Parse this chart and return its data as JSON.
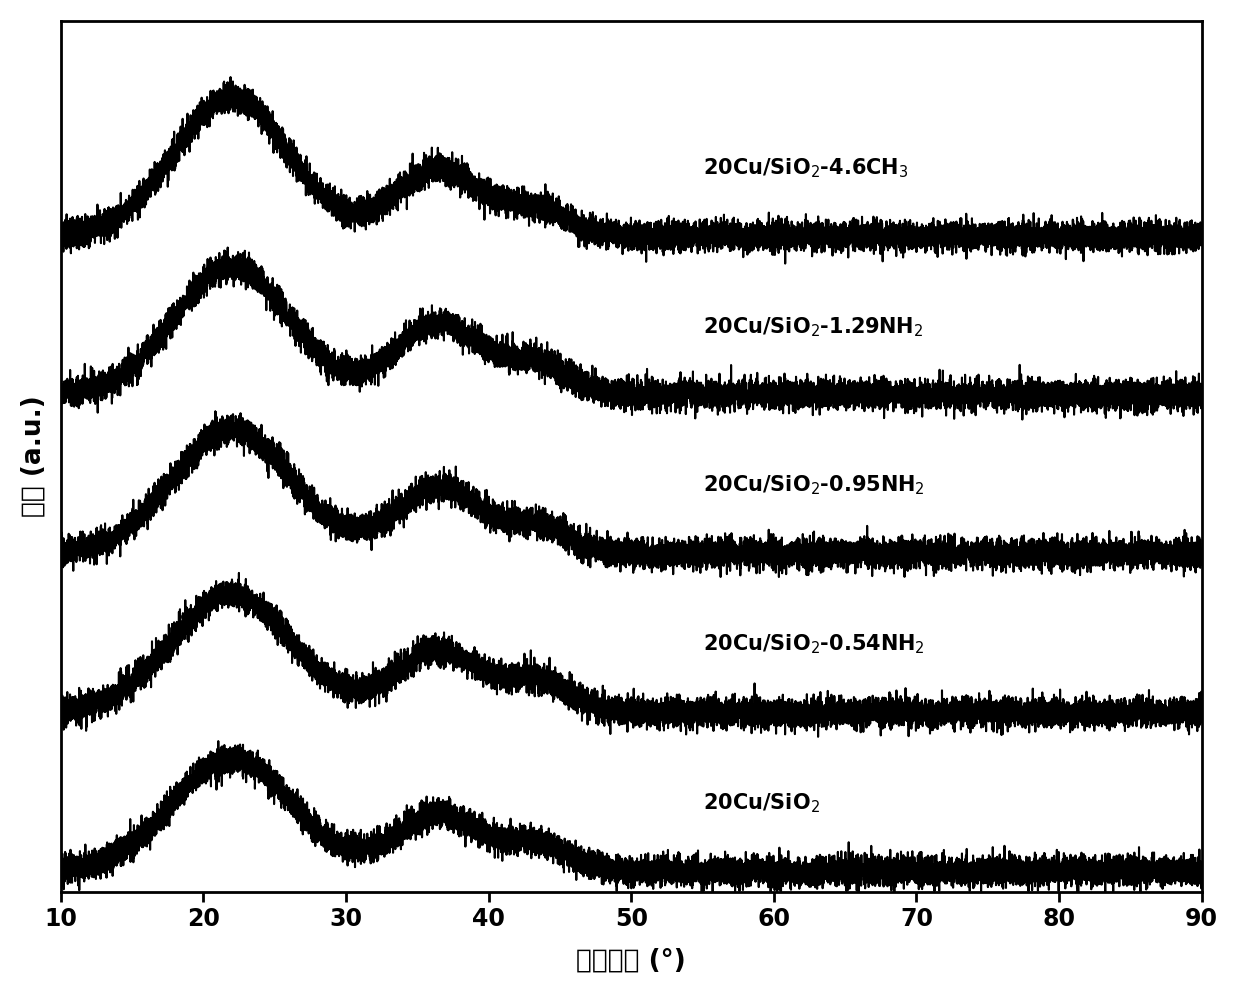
{
  "x_min": 10,
  "x_max": 90,
  "x_ticks": [
    10,
    20,
    30,
    40,
    50,
    60,
    70,
    80,
    90
  ],
  "xlabel": "测试角度 (°)",
  "ylabel": "强度 (a.u.)",
  "labels": [
    "20Cu/SiO$_2$",
    "20Cu/SiO$_2$-0.54NH$_2$",
    "20Cu/SiO$_2$-0.95NH$_2$",
    "20Cu/SiO$_2$-1.29NH$_2$",
    "20Cu/SiO$_2$-4.6CH$_3$"
  ],
  "offsets": [
    0.0,
    0.155,
    0.31,
    0.465,
    0.62
  ],
  "peak1_centers": [
    22.0,
    22.0,
    22.0,
    22.0,
    22.0
  ],
  "peak1_widths": [
    4.2,
    4.2,
    4.2,
    4.0,
    4.0
  ],
  "peak1_amps": [
    0.11,
    0.115,
    0.12,
    0.125,
    0.135
  ],
  "peak2_centers": [
    36.5,
    36.5,
    36.5,
    36.5,
    36.5
  ],
  "peak2_widths": [
    3.0,
    3.0,
    3.0,
    3.0,
    3.0
  ],
  "peak2_amps": [
    0.055,
    0.06,
    0.065,
    0.07,
    0.065
  ],
  "peak3_centers": [
    43.5,
    43.5,
    43.5,
    43.5,
    43.5
  ],
  "peak3_widths": [
    2.2,
    2.2,
    2.2,
    2.2,
    2.2
  ],
  "peak3_amps": [
    0.025,
    0.03,
    0.025,
    0.03,
    0.025
  ],
  "noise_level": 0.007,
  "background_color": "#ffffff",
  "line_color": "#000000",
  "label_x_positions": [
    55,
    55,
    55,
    55,
    55
  ],
  "label_fontsize": 15,
  "axis_fontsize": 19,
  "tick_fontsize": 17,
  "linewidth": 1.5
}
